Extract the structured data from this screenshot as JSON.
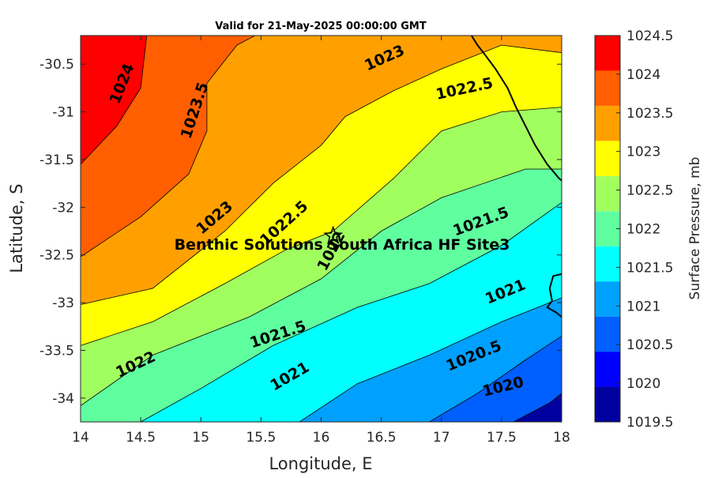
{
  "chart_data": {
    "type": "contour",
    "title": "Valid for 21-May-2025 00:00:00 GMT",
    "xlabel": "Longitude, E",
    "ylabel": "Latitude, S",
    "xlim": [
      14,
      18
    ],
    "ylim": [
      -34.25,
      -30.2
    ],
    "x_ticks": [
      "14",
      "14.5",
      "15",
      "15.5",
      "16",
      "16.5",
      "17",
      "17.5",
      "18"
    ],
    "y_ticks": [
      "-30.5",
      "-31",
      "-31.5",
      "-32",
      "-32.5",
      "-33",
      "-33.5",
      "-34"
    ],
    "colorbar": {
      "label": "Surface Pressure, mb",
      "range": [
        1019.5,
        1024.5
      ],
      "ticks": [
        "1019.5",
        "1020",
        "1020.5",
        "1021",
        "1021.5",
        "1022",
        "1022.5",
        "1023",
        "1023.5",
        "1024",
        "1024.5"
      ],
      "colors": [
        "#00009f",
        "#0000ff",
        "#005fff",
        "#00a0ff",
        "#00ffff",
        "#5fffa0",
        "#a0ff5f",
        "#ffff00",
        "#ffa000",
        "#ff5f00",
        "#ff0000"
      ]
    },
    "contour_levels": [
      1020,
      1020.5,
      1021,
      1021.5,
      1022,
      1022.5,
      1023,
      1023.5,
      1024
    ],
    "contours": [
      {
        "level": 1024,
        "points": [
          [
            14,
            -31.55
          ],
          [
            14.3,
            -31.15
          ],
          [
            14.5,
            -30.75
          ],
          [
            14.55,
            -30.2
          ]
        ]
      },
      {
        "level": 1023.5,
        "points": [
          [
            14,
            -32.52
          ],
          [
            14.5,
            -32.1
          ],
          [
            14.9,
            -31.65
          ],
          [
            15.05,
            -31.2
          ],
          [
            15.05,
            -30.7
          ],
          [
            15.3,
            -30.3
          ],
          [
            15.45,
            -30.2
          ]
        ]
      },
      {
        "level": 1023,
        "points": [
          [
            14,
            -33.02
          ],
          [
            14.6,
            -32.85
          ],
          [
            15.2,
            -32.25
          ],
          [
            15.6,
            -31.75
          ],
          [
            16.0,
            -31.35
          ],
          [
            16.2,
            -31.05
          ],
          [
            16.6,
            -30.78
          ],
          [
            17.0,
            -30.55
          ],
          [
            17.5,
            -30.3
          ],
          [
            18,
            -30.38
          ]
        ]
      },
      {
        "level": 1022.5,
        "points": [
          [
            14,
            -33.45
          ],
          [
            14.6,
            -33.2
          ],
          [
            15.2,
            -32.8
          ],
          [
            15.7,
            -32.45
          ],
          [
            16.1,
            -32.25
          ],
          [
            16.6,
            -31.7
          ],
          [
            17.0,
            -31.2
          ],
          [
            17.5,
            -31.0
          ],
          [
            18,
            -30.95
          ]
        ]
      },
      {
        "level": 1022,
        "points": [
          [
            14,
            -34.08
          ],
          [
            14.6,
            -33.55
          ],
          [
            15.4,
            -33.15
          ],
          [
            16.0,
            -32.75
          ],
          [
            16.5,
            -32.25
          ],
          [
            17.0,
            -31.9
          ],
          [
            17.7,
            -31.6
          ],
          [
            18,
            -31.6
          ]
        ]
      },
      {
        "level": 1021.5,
        "points": [
          [
            14.5,
            -34.25
          ],
          [
            15.0,
            -33.9
          ],
          [
            15.6,
            -33.45
          ],
          [
            16.3,
            -33.05
          ],
          [
            16.9,
            -32.8
          ],
          [
            17.5,
            -32.4
          ],
          [
            18,
            -31.95
          ]
        ]
      },
      {
        "level": 1021,
        "points": [
          [
            15.82,
            -34.25
          ],
          [
            16.3,
            -33.85
          ],
          [
            16.9,
            -33.55
          ],
          [
            17.5,
            -33.2
          ],
          [
            18,
            -32.95
          ]
        ]
      },
      {
        "level": 1020.5,
        "points": [
          [
            16.9,
            -34.25
          ],
          [
            17.3,
            -33.95
          ],
          [
            17.7,
            -33.6
          ],
          [
            18,
            -33.35
          ]
        ]
      },
      {
        "level": 1020,
        "points": [
          [
            17.6,
            -34.25
          ],
          [
            17.9,
            -34.05
          ],
          [
            18,
            -33.95
          ]
        ]
      }
    ],
    "contour_labels": [
      "1024",
      "1023.5",
      "1023",
      "1022.5",
      "1023",
      "1022.5",
      "1022",
      "1021.5",
      "1022",
      "1021.5",
      "1021",
      "1020.5",
      "1021",
      "1020"
    ],
    "coastline": "black",
    "annotation": {
      "label": "Benthic Solutions South Africa HF Site3",
      "lon": 16.1,
      "lat": -32.3,
      "marker": "star"
    }
  }
}
